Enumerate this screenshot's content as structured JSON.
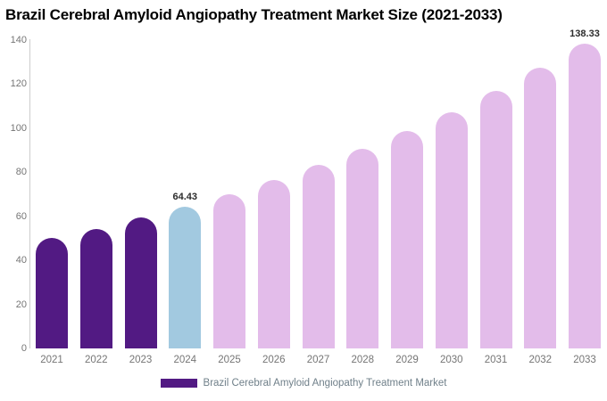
{
  "title": "Brazil Cerebral Amyloid Angiopathy Treatment Market Size (2021-2033)",
  "chart_data": {
    "type": "bar",
    "title": "Brazil Cerebral Amyloid Angiopathy Treatment Market Size (2021-2033)",
    "xlabel": "",
    "ylabel": "",
    "categories": [
      "2021",
      "2022",
      "2023",
      "2024",
      "2025",
      "2026",
      "2027",
      "2028",
      "2029",
      "2030",
      "2031",
      "2032",
      "2033"
    ],
    "values": [
      49.9,
      54.3,
      59.2,
      64.43,
      70.1,
      76.4,
      83.1,
      90.5,
      98.5,
      107.2,
      116.7,
      127.1,
      138.33
    ],
    "bar_colors": [
      "#521a83",
      "#521a83",
      "#521a83",
      "#a2c9e0",
      "#e3bcea",
      "#e3bcea",
      "#e3bcea",
      "#e3bcea",
      "#e3bcea",
      "#e3bcea",
      "#e3bcea",
      "#e3bcea",
      "#e3bcea"
    ],
    "value_labels": [
      {
        "category": "2024",
        "text": "64.43"
      },
      {
        "category": "2033",
        "text": "138.33"
      }
    ],
    "ylim": [
      0,
      140
    ],
    "yticks": [
      0,
      20,
      40,
      60,
      80,
      100,
      120,
      140
    ],
    "grid": false,
    "legend": {
      "position": "bottom",
      "items": [
        {
          "label": "Brazil Cerebral Amyloid Angiopathy Treatment Market",
          "color": "#521a83"
        }
      ]
    }
  },
  "colors": {
    "purple": "#521a83",
    "light_blue": "#a2c9e0",
    "light_pink": "#e3bcea",
    "axis_line": "#cccccc",
    "axis_text": "#757575",
    "value_label_text": "#2b2b2b",
    "legend_text": "#70808a",
    "title_text": "#000000",
    "background": "#ffffff"
  }
}
